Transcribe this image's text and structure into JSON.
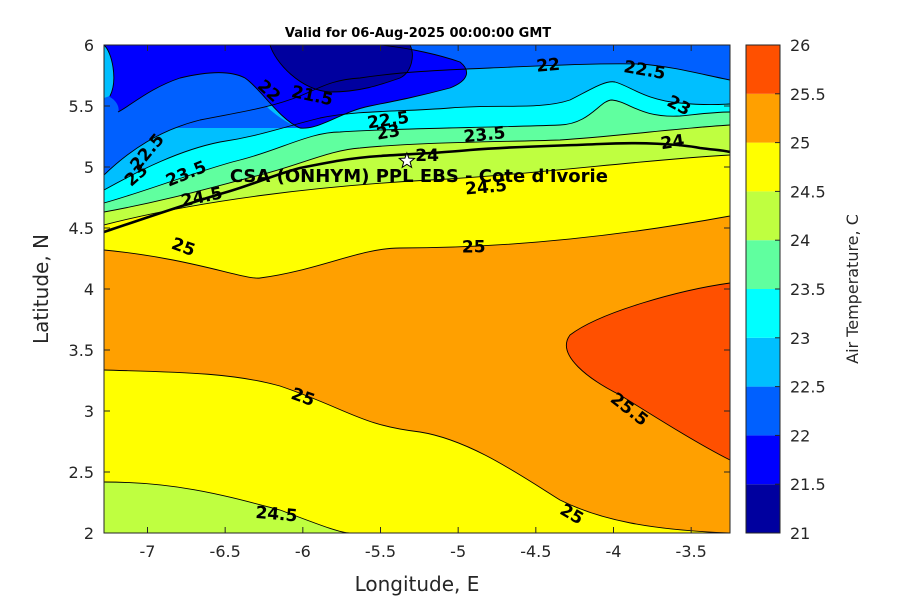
{
  "chart_data": {
    "type": "heatmap",
    "title": "Valid for 06-Aug-2025 00:00:00 GMT",
    "xlabel": "Longitude, E",
    "ylabel": "Latitude, N",
    "xlim": [
      -7.28,
      -3.25
    ],
    "ylim": [
      2,
      6
    ],
    "x_ticks": [
      -7,
      -6.5,
      -6,
      -5.5,
      -5,
      -4.5,
      -4,
      -3.5
    ],
    "x_tick_labels": [
      "-7",
      "-6.5",
      "-6",
      "-5.5",
      "-5",
      "-4.5",
      "-4",
      "-3.5"
    ],
    "y_ticks": [
      2,
      2.5,
      3,
      3.5,
      4,
      4.5,
      5,
      5.5,
      6
    ],
    "y_tick_labels": [
      "2",
      "2.5",
      "3",
      "3.5",
      "4",
      "4.5",
      "5",
      "5.5",
      "6"
    ],
    "colorbar": {
      "label": "Air Temperature, C",
      "levels": [
        21,
        21.5,
        22,
        22.5,
        23,
        23.5,
        24,
        24.5,
        25,
        25.5,
        26
      ],
      "tick_labels": [
        "21",
        "21.5",
        "22",
        "22.5",
        "23",
        "23.5",
        "24",
        "24.5",
        "25",
        "25.5",
        "26"
      ],
      "colors": [
        "#00009f",
        "#0000ff",
        "#0060ff",
        "#00bfff",
        "#00ffff",
        "#60ff9f",
        "#bfff40",
        "#ffff00",
        "#ffa000",
        "#ff5000",
        "#ff0000"
      ]
    },
    "contour_labels": [
      {
        "text": "21.5",
        "lon": -5.94,
        "lat": 5.58,
        "rot": 12
      },
      {
        "text": "22",
        "lon": -6.22,
        "lat": 5.62,
        "rot": 42
      },
      {
        "text": "22",
        "lon": -4.42,
        "lat": 5.83,
        "rot": -5
      },
      {
        "text": "22.5",
        "lon": -7.0,
        "lat": 5.12,
        "rot": -50
      },
      {
        "text": "22.5",
        "lon": -5.45,
        "lat": 5.38,
        "rot": -8
      },
      {
        "text": "22.5",
        "lon": -3.8,
        "lat": 5.79,
        "rot": 10
      },
      {
        "text": "23",
        "lon": -7.07,
        "lat": 4.93,
        "rot": -42
      },
      {
        "text": "23",
        "lon": -5.45,
        "lat": 5.28,
        "rot": -10
      },
      {
        "text": "23",
        "lon": -3.58,
        "lat": 5.5,
        "rot": 28
      },
      {
        "text": "23.5",
        "lon": -6.75,
        "lat": 4.94,
        "rot": -22
      },
      {
        "text": "23.5",
        "lon": -4.83,
        "lat": 5.26,
        "rot": -6
      },
      {
        "text": "24",
        "lon": -5.2,
        "lat": 5.09,
        "rot": 0
      },
      {
        "text": "24",
        "lon": -3.62,
        "lat": 5.2,
        "rot": -8
      },
      {
        "text": "24.5",
        "lon": -6.65,
        "lat": 4.75,
        "rot": -12
      },
      {
        "text": "24.5",
        "lon": -4.82,
        "lat": 4.83,
        "rot": -5
      },
      {
        "text": "25",
        "lon": -6.77,
        "lat": 4.34,
        "rot": 20
      },
      {
        "text": "25",
        "lon": -4.9,
        "lat": 4.34,
        "rot": 0
      },
      {
        "text": "25",
        "lon": -6.0,
        "lat": 3.11,
        "rot": 20
      },
      {
        "text": "25",
        "lon": -4.27,
        "lat": 2.15,
        "rot": 30
      },
      {
        "text": "25.5",
        "lon": -3.9,
        "lat": 3.01,
        "rot": 38
      },
      {
        "text": "24.5",
        "lon": -6.17,
        "lat": 2.15,
        "rot": 5
      }
    ],
    "station": {
      "label": "CSA (ONHYM) PPL EBS  - Cote d'Ivorie",
      "lon": -5.33,
      "lat": 5.05,
      "marker": "star"
    }
  }
}
